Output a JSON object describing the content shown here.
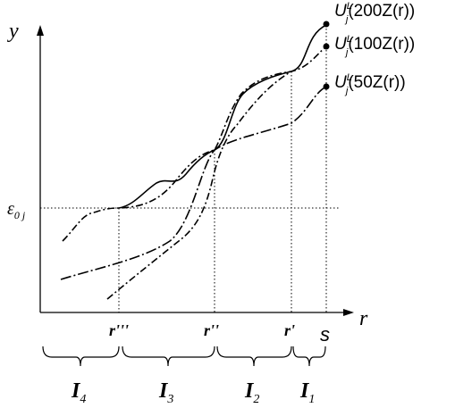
{
  "axes": {
    "y_label": "y",
    "x_label": "r"
  },
  "level": {
    "base": "ε",
    "sub": "0 j"
  },
  "curve_labels": [
    {
      "base": "U",
      "sup": "L",
      "sub": "j",
      "arg": "(200Z(r))"
    },
    {
      "base": "U",
      "sup": "L",
      "sub": "j",
      "arg": "(100Z(r))"
    },
    {
      "base": "U",
      "sup": "L",
      "sub": "j",
      "arg": "(50Z(r))"
    }
  ],
  "x_points": [
    "r'''",
    "r''",
    "r'",
    "s"
  ],
  "intervals": [
    {
      "base": "I",
      "sub": "4"
    },
    {
      "base": "I",
      "sub": "3"
    },
    {
      "base": "I",
      "sub": "2"
    },
    {
      "base": "I",
      "sub": "1"
    }
  ]
}
